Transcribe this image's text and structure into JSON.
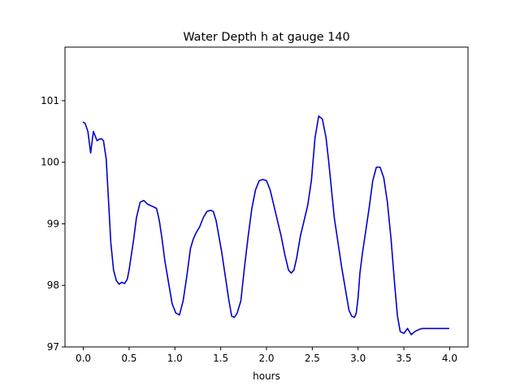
{
  "chart_data": {
    "type": "line",
    "title": "Water Depth h at gauge 140",
    "xlabel": "hours",
    "ylabel": "",
    "xlim": [
      -0.2,
      4.2
    ],
    "ylim": [
      97.0,
      101.87
    ],
    "xticks": [
      0.0,
      0.5,
      1.0,
      1.5,
      2.0,
      2.5,
      3.0,
      3.5,
      4.0
    ],
    "xtick_labels": [
      "0.0",
      "0.5",
      "1.0",
      "1.5",
      "2.0",
      "2.5",
      "3.0",
      "3.5",
      "4.0"
    ],
    "yticks": [
      97,
      98,
      99,
      100,
      101
    ],
    "ytick_labels": [
      "97",
      "98",
      "99",
      "100",
      "101"
    ],
    "grid": false,
    "line_color": "#0000cc",
    "series": [
      {
        "x": [
          0.0,
          0.02,
          0.05,
          0.08,
          0.11,
          0.15,
          0.18,
          0.2,
          0.22,
          0.25,
          0.28,
          0.3,
          0.33,
          0.36,
          0.39,
          0.42,
          0.45,
          0.48,
          0.5,
          0.52,
          0.55,
          0.58,
          0.62,
          0.66,
          0.7,
          0.73,
          0.76,
          0.8,
          0.83,
          0.86,
          0.89,
          0.93,
          0.97,
          1.01,
          1.05,
          1.09,
          1.13,
          1.17,
          1.2,
          1.23,
          1.27,
          1.31,
          1.35,
          1.39,
          1.42,
          1.45,
          1.48,
          1.51,
          1.55,
          1.59,
          1.62,
          1.65,
          1.68,
          1.72,
          1.76,
          1.8,
          1.84,
          1.88,
          1.92,
          1.96,
          2.0,
          2.04,
          2.08,
          2.12,
          2.16,
          2.2,
          2.24,
          2.27,
          2.3,
          2.33,
          2.37,
          2.41,
          2.45,
          2.49,
          2.53,
          2.57,
          2.61,
          2.65,
          2.68,
          2.71,
          2.74,
          2.78,
          2.82,
          2.86,
          2.9,
          2.93,
          2.96,
          2.98,
          3.0,
          3.02,
          3.05,
          3.08,
          3.12,
          3.16,
          3.2,
          3.24,
          3.28,
          3.32,
          3.36,
          3.4,
          3.43,
          3.46,
          3.5,
          3.54,
          3.58,
          3.62,
          3.66,
          3.7,
          3.72,
          3.74,
          3.77,
          3.8,
          3.84,
          3.88,
          3.92,
          3.95,
          3.97,
          3.99
        ],
        "y": [
          100.65,
          100.63,
          100.5,
          100.15,
          100.5,
          100.35,
          100.38,
          100.38,
          100.35,
          100.05,
          99.25,
          98.7,
          98.25,
          98.08,
          98.02,
          98.05,
          98.03,
          98.1,
          98.25,
          98.45,
          98.75,
          99.1,
          99.35,
          99.38,
          99.32,
          99.3,
          99.28,
          99.25,
          99.05,
          98.75,
          98.4,
          98.05,
          97.7,
          97.55,
          97.52,
          97.75,
          98.15,
          98.6,
          98.75,
          98.85,
          98.95,
          99.1,
          99.2,
          99.22,
          99.2,
          99.05,
          98.8,
          98.55,
          98.15,
          97.75,
          97.5,
          97.48,
          97.55,
          97.75,
          98.3,
          98.8,
          99.25,
          99.55,
          99.7,
          99.72,
          99.7,
          99.55,
          99.3,
          99.05,
          98.8,
          98.5,
          98.25,
          98.2,
          98.25,
          98.45,
          98.8,
          99.05,
          99.3,
          99.7,
          100.4,
          100.75,
          100.7,
          100.4,
          100.0,
          99.55,
          99.1,
          98.7,
          98.3,
          97.95,
          97.6,
          97.5,
          97.48,
          97.55,
          97.8,
          98.2,
          98.55,
          98.85,
          99.25,
          99.7,
          99.92,
          99.92,
          99.75,
          99.35,
          98.75,
          98.0,
          97.5,
          97.25,
          97.22,
          97.3,
          97.2,
          97.25,
          97.28,
          97.3,
          97.3,
          97.3,
          97.3,
          97.3,
          97.3,
          97.3,
          97.3,
          97.3,
          97.3,
          97.3
        ]
      }
    ]
  }
}
